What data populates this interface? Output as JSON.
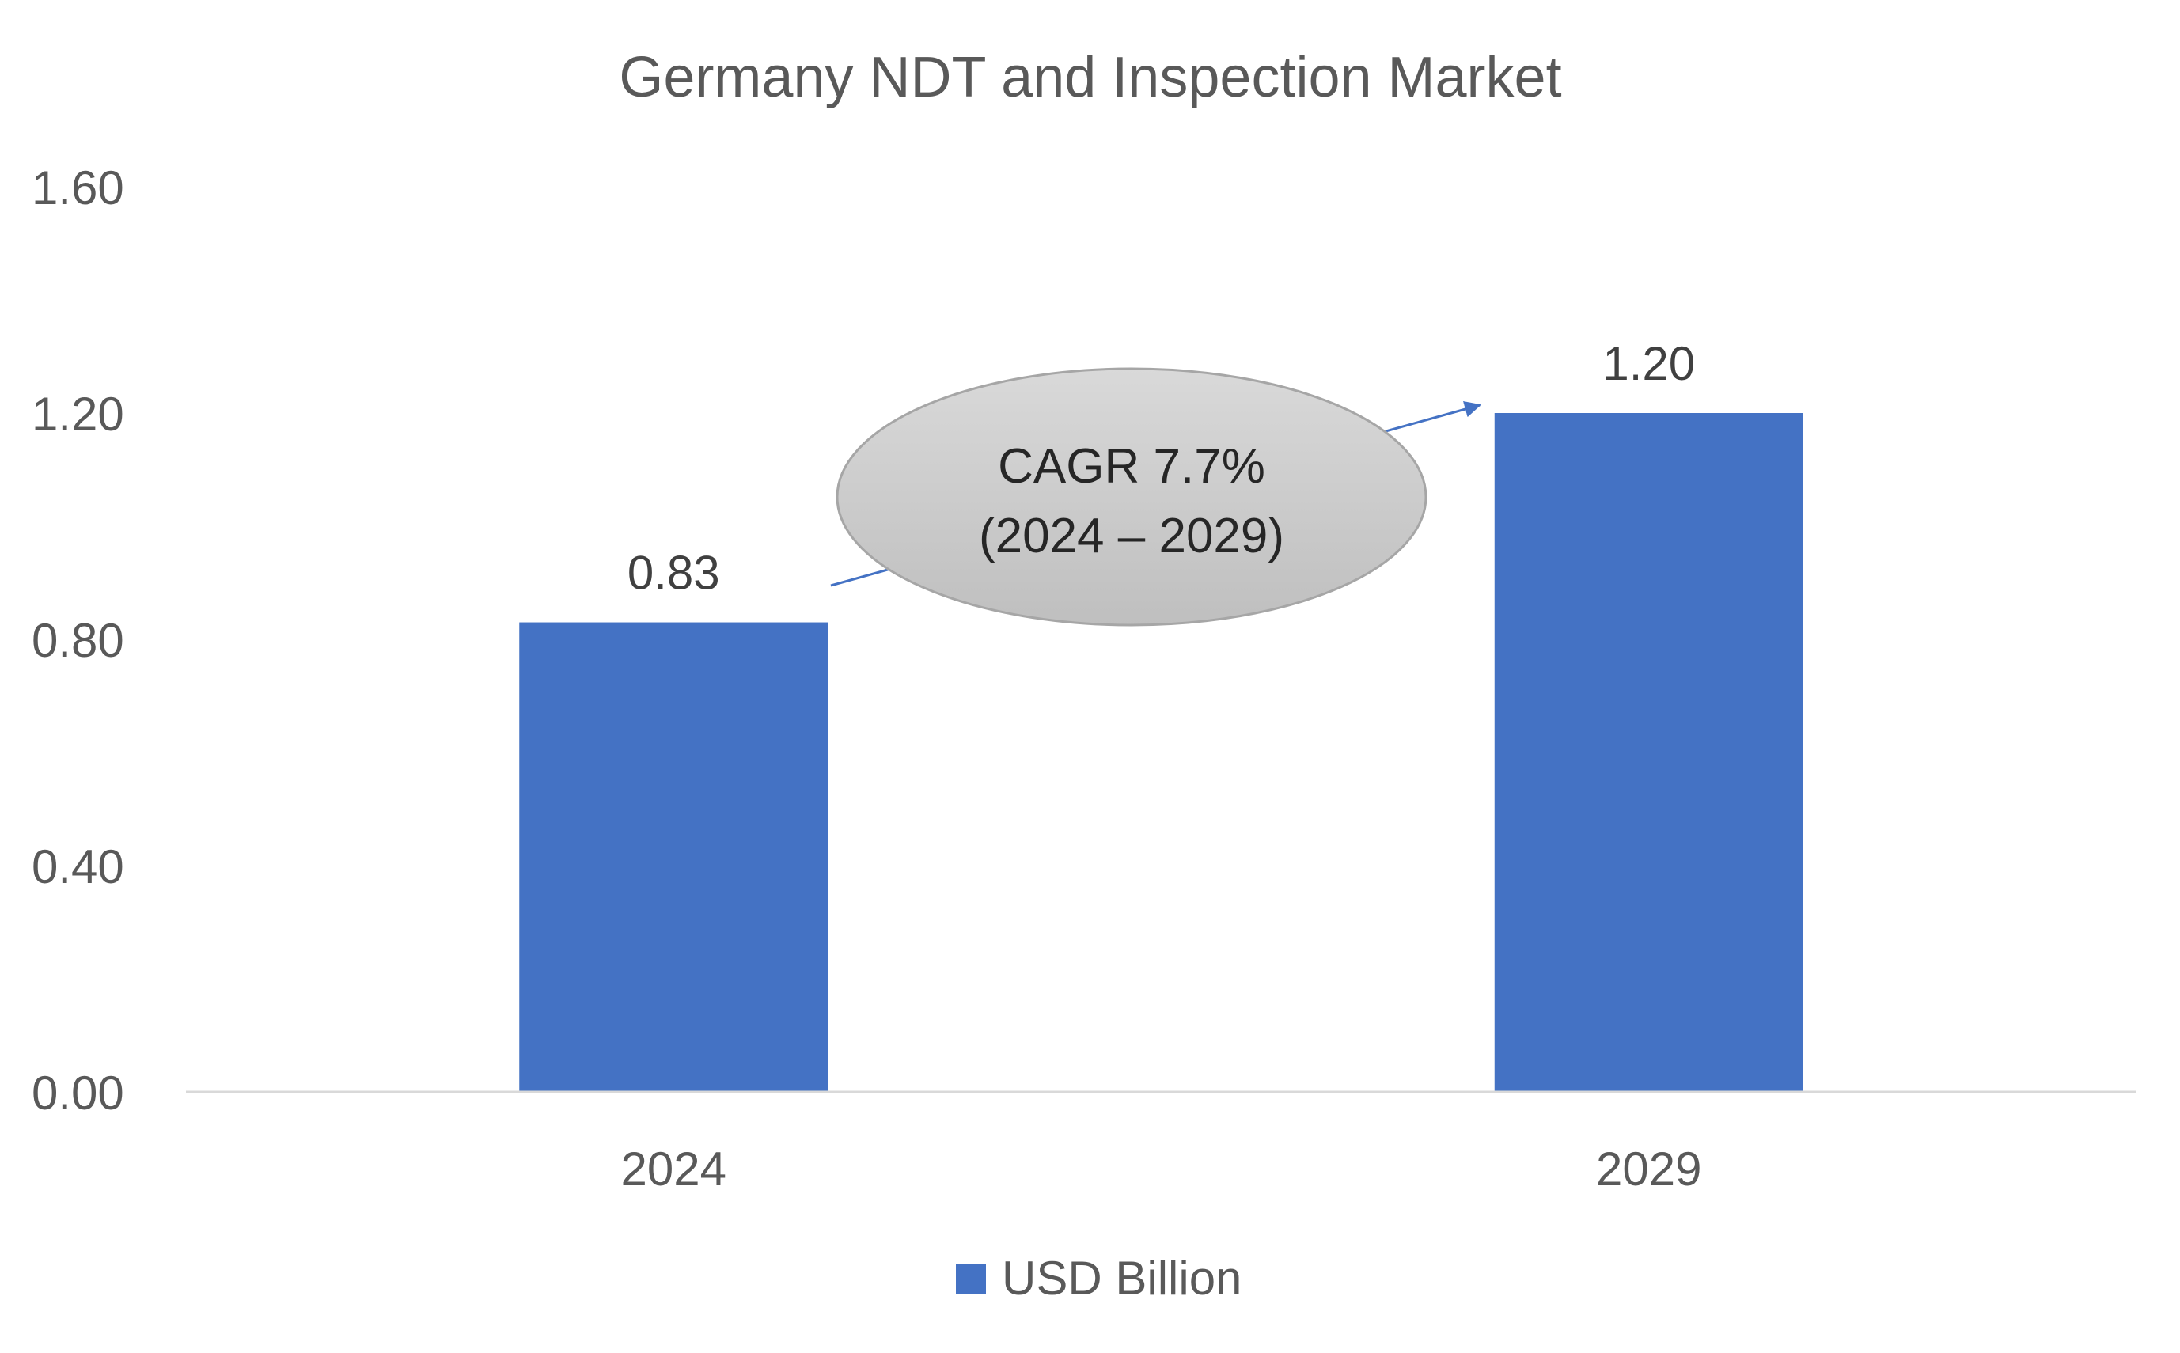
{
  "chart_data": {
    "type": "bar",
    "title": "Germany NDT and Inspection Market",
    "categories": [
      "2024",
      "2029"
    ],
    "series": [
      {
        "name": "USD Billion",
        "values": [
          0.83,
          1.2
        ]
      }
    ],
    "value_labels": [
      "0.83",
      "1.20"
    ],
    "ylim": [
      0,
      1.6
    ],
    "yticks": [
      0.0,
      0.4,
      0.8,
      1.2,
      1.6
    ],
    "ytick_labels": [
      "0.00",
      "0.40",
      "0.80",
      "1.20",
      "1.60"
    ],
    "xlabel": "",
    "ylabel": "",
    "grid": false,
    "legend_position": "bottom",
    "annotation": {
      "line1": "CAGR 7.7%",
      "line2": "(2024 – 2029)"
    },
    "colors": {
      "bar": "#4472C4",
      "axis_text": "#595959",
      "title_text": "#595959",
      "label_text": "#404040",
      "axis_line": "#D9D9D9",
      "arrow": "#4472C4"
    }
  }
}
